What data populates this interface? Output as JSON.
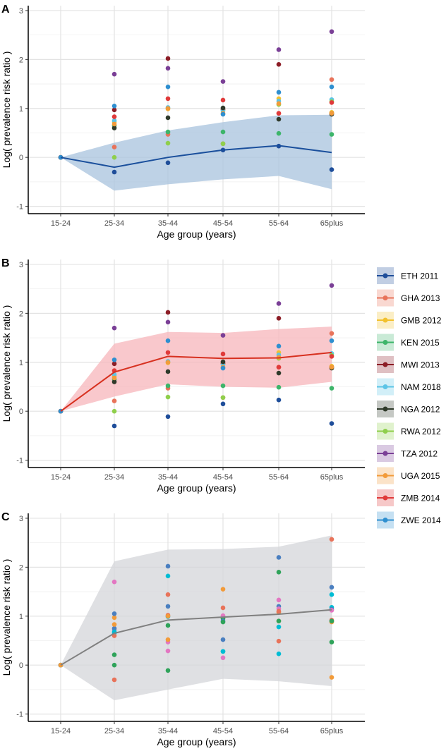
{
  "chart_data": [
    {
      "panel": "A",
      "type": "scatter",
      "title": "",
      "xlabel": "Age group (years)",
      "ylabel": "Log( prevalence risk ratio )",
      "categories": [
        "15-24",
        "25-34",
        "35-44",
        "45-54",
        "55-64",
        "65plus"
      ],
      "yticks": [
        "3",
        "2",
        "1",
        "0",
        "-1"
      ],
      "ylim": [
        -1.15,
        3.1
      ],
      "grid": true,
      "ribbon_color": "#a8c3dd",
      "line_color": "#1a4f9c",
      "line": [
        0,
        -0.2,
        0.0,
        0.15,
        0.24,
        0.1
      ],
      "ribbon_low": [
        0,
        -0.68,
        -0.55,
        -0.45,
        -0.38,
        -0.65
      ],
      "ribbon_high": [
        0,
        0.3,
        0.55,
        0.72,
        0.86,
        0.87
      ]
    },
    {
      "panel": "B",
      "type": "scatter",
      "title": "",
      "xlabel": "Age group (years)",
      "ylabel": "Log( prevalence risk ratio )",
      "categories": [
        "15-24",
        "25-34",
        "35-44",
        "45-54",
        "55-64",
        "65plus"
      ],
      "yticks": [
        "3",
        "2",
        "1",
        "0",
        "-1"
      ],
      "ylim": [
        -1.15,
        3.1
      ],
      "grid": true,
      "ribbon_color": "#f7b5bb",
      "line_color": "#d7301f",
      "line": [
        0,
        0.8,
        1.12,
        1.08,
        1.09,
        1.2
      ],
      "ribbon_low": [
        0,
        0.3,
        0.55,
        0.5,
        0.48,
        0.6
      ],
      "ribbon_high": [
        0,
        1.38,
        1.62,
        1.6,
        1.68,
        1.73
      ]
    },
    {
      "panel": "C",
      "type": "scatter",
      "title": "",
      "xlabel": "Age group (years)",
      "ylabel": "Log( prevalence risk ratio )",
      "categories": [
        "15-24",
        "25-34",
        "35-44",
        "45-54",
        "55-64",
        "65plus"
      ],
      "yticks": [
        "3",
        "2",
        "1",
        "0",
        "-1"
      ],
      "ylim": [
        -1.15,
        3.1
      ],
      "grid": true,
      "ribbon_color": "#d4d6da",
      "line_color": "#808080",
      "line": [
        0,
        0.65,
        0.92,
        0.98,
        1.04,
        1.13
      ],
      "ribbon_low": [
        0,
        -0.72,
        -0.5,
        -0.28,
        -0.33,
        -0.43
      ],
      "ribbon_high": [
        0,
        2.12,
        2.36,
        2.37,
        2.42,
        2.65
      ]
    }
  ],
  "series": [
    {
      "name": "ETH 2011",
      "color": "#1f4e9a",
      "values": [
        0,
        -0.3,
        -0.11,
        0.15,
        0.23,
        -0.25
      ]
    },
    {
      "name": "GHA 2013",
      "color": "#e8735a",
      "values": [
        0,
        0.21,
        0.47,
        0.28,
        0.9,
        1.59
      ]
    },
    {
      "name": "GMB 2012",
      "color": "#f2c12e",
      "values": [
        0,
        0.72,
        0.99,
        0.97,
        1.2,
        0.92
      ]
    },
    {
      "name": "KEN 2015",
      "color": "#3db56a",
      "values": [
        0,
        0.65,
        0.52,
        0.52,
        0.49,
        0.47
      ]
    },
    {
      "name": "MWI 2013",
      "color": "#8c1d26",
      "values": [
        0,
        0.97,
        2.02,
        0.98,
        1.9,
        0.9
      ]
    },
    {
      "name": "NAM 2018",
      "color": "#5cc4e6",
      "values": [
        0,
        0.75,
        1.02,
        0.95,
        1.15,
        1.18
      ]
    },
    {
      "name": "NGA 2012",
      "color": "#2f3a2a",
      "values": [
        0,
        0.6,
        0.81,
        1.01,
        0.78,
        0.88
      ]
    },
    {
      "name": "RWA 2012",
      "color": "#8fcf4c",
      "values": [
        0,
        0.0,
        0.29,
        0.28,
        1.08,
        1.14
      ]
    },
    {
      "name": "TZA 2012",
      "color": "#7a3f96",
      "values": [
        0,
        1.7,
        1.82,
        1.55,
        2.2,
        2.57
      ]
    },
    {
      "name": "UGA 2015",
      "color": "#f29b3a",
      "values": [
        0,
        0.68,
        1.0,
        0.9,
        1.1,
        0.9
      ]
    },
    {
      "name": "ZMB 2014",
      "color": "#e03a3a",
      "values": [
        0,
        0.83,
        1.2,
        1.17,
        0.9,
        1.12
      ]
    },
    {
      "name": "ZWE 2014",
      "color": "#2e8fd0",
      "values": [
        0,
        1.05,
        1.44,
        0.88,
        1.33,
        1.44
      ]
    }
  ],
  "panel_c_colors": [
    "#4a7fc0",
    "#e8735a",
    "#2fa35a",
    "#e377c2",
    "#00bcd4",
    "#f29b3a"
  ],
  "panel_labels": [
    "A",
    "B",
    "C"
  ]
}
